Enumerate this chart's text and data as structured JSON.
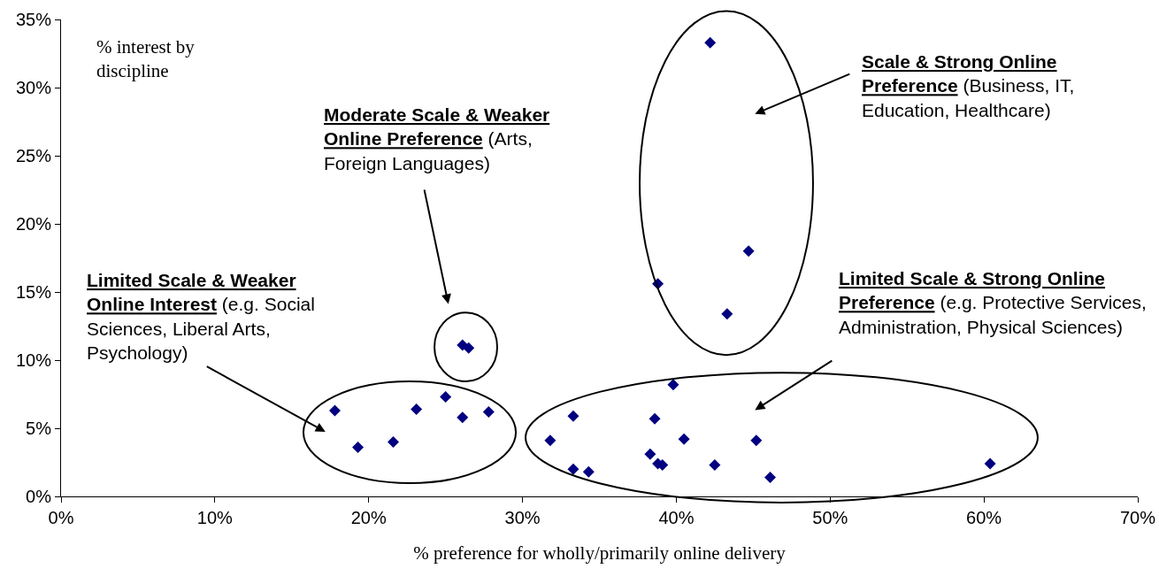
{
  "chart_data": {
    "type": "scatter",
    "xlabel": "% preference for wholly/primarily online delivery",
    "ylabel": "% interest by discipline",
    "annotations": [
      "Moderate Scale & Weaker Online Preference (Arts, Foreign Languages)",
      "Scale & Strong Online Preference (Business, IT, Education, Healthcare)",
      "Limited Scale & Weaker Online Interest (e.g. Social Sciences, Liberal Arts, Psychology)",
      "Limited Scale & Strong Online Preference (e.g. Protective Services, Administration, Physical Sciences)"
    ],
    "x": [
      17.8,
      19.3,
      21.6,
      23.1,
      25.0,
      26.1,
      26.1,
      26.5,
      27.8,
      31.8,
      33.3,
      33.3,
      34.3,
      38.3,
      38.6,
      38.8,
      38.8,
      39.1,
      39.8,
      40.5,
      42.2,
      42.5,
      43.3,
      44.7,
      45.2,
      46.1,
      60.4
    ],
    "series": [
      {
        "color": "#000080",
        "values": [
          6.3,
          3.6,
          4.0,
          6.4,
          7.3,
          5.8,
          11.1,
          10.9,
          6.2,
          4.1,
          5.9,
          2.0,
          1.8,
          3.1,
          5.7,
          2.4,
          15.6,
          2.3,
          8.2,
          4.2,
          33.3,
          2.3,
          13.4,
          18.0,
          4.1,
          1.4,
          2.4
        ]
      }
    ],
    "xlim": [
      0,
      70
    ],
    "ylim": [
      0,
      35
    ],
    "xticks": [
      {
        "value": 0,
        "label": "0%"
      },
      {
        "value": 10,
        "label": "10%"
      },
      {
        "value": 20,
        "label": "20%"
      },
      {
        "value": 30,
        "label": "30%"
      },
      {
        "value": 40,
        "label": "40%"
      },
      {
        "value": 50,
        "label": "50%"
      },
      {
        "value": 60,
        "label": "60%"
      },
      {
        "value": 70,
        "label": "70%"
      }
    ],
    "yticks": [
      {
        "value": 0,
        "label": "0%"
      },
      {
        "value": 5,
        "label": "5%"
      },
      {
        "value": 10,
        "label": "10%"
      },
      {
        "value": 15,
        "label": "15%"
      },
      {
        "value": 20,
        "label": "20%"
      },
      {
        "value": 25,
        "label": "25%"
      },
      {
        "value": 30,
        "label": "30%"
      },
      {
        "value": 35,
        "label": "35%"
      }
    ],
    "marker": "diamond"
  }
}
